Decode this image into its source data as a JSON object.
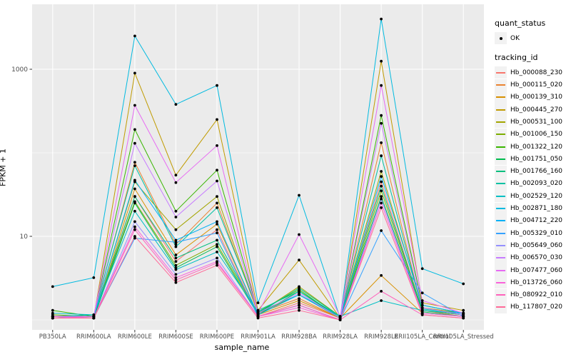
{
  "chart_data": {
    "type": "line",
    "title": "",
    "xlabel": "sample_name",
    "ylabel": "FPKM + 1",
    "y_scale": "log10",
    "y_major_ticks": [
      10,
      1000
    ],
    "y_minor_gridlines": [
      1,
      100
    ],
    "grid": "on",
    "legend_position": "right",
    "categories": [
      "PB350LA",
      "RRIM600LA",
      "RRIM600LE",
      "RRIM600SE",
      "RRIM600PE",
      "RRIM901LA",
      "RRIM928BA",
      "RRIM928LA",
      "RRIM928LE",
      "RRII105LA_Control",
      "RRII105LA_Stressed"
    ],
    "legends": {
      "quant_status_title": "quant_status",
      "ok_label": "OK",
      "tracking_title": "tracking_id"
    },
    "panel_color": "#EBEBEB",
    "gridline_color": "#FFFFFF",
    "tick_label_color": "#4D4D4D",
    "point_color": "#000000",
    "series": [
      {
        "name": "Hb_000088_230",
        "color": "#F8766D",
        "values": [
          1.05,
          1.05,
          30,
          5,
          12,
          1.1,
          1.6,
          1.05,
          45,
          1.3,
          1.1
        ]
      },
      {
        "name": "Hb_000115_020",
        "color": "#EA8331",
        "values": [
          1.05,
          1.1,
          77,
          8,
          25,
          1.2,
          1.8,
          1.05,
          132,
          1.3,
          1.15
        ]
      },
      {
        "name": "Hb_000139_310",
        "color": "#D89000",
        "values": [
          1.05,
          1.05,
          37,
          6,
          14,
          1.15,
          1.7,
          1.05,
          3.4,
          1.2,
          1.1
        ]
      },
      {
        "name": "Hb_000445_270",
        "color": "#C09B00",
        "values": [
          1.1,
          1.05,
          900,
          54,
          250,
          1.3,
          5.2,
          1.05,
          1250,
          1.6,
          1.3
        ]
      },
      {
        "name": "Hb_000531_100",
        "color": "#A3A500",
        "values": [
          1.1,
          1.1,
          45,
          12,
          30,
          1.2,
          2.5,
          1.1,
          60,
          1.4,
          1.2
        ]
      },
      {
        "name": "Hb_001006_150",
        "color": "#7CAE00",
        "values": [
          1.15,
          1.1,
          26,
          4.5,
          8,
          1.2,
          2.0,
          1.05,
          35,
          1.3,
          1.15
        ]
      },
      {
        "name": "Hb_001322_120",
        "color": "#39B600",
        "values": [
          1.3,
          1.1,
          190,
          20,
          62,
          1.25,
          2.3,
          1.05,
          280,
          1.5,
          1.2
        ]
      },
      {
        "name": "Hb_001751_050",
        "color": "#00BB4E",
        "values": [
          1.1,
          1.05,
          25,
          4.2,
          7.5,
          1.15,
          2.2,
          1.05,
          30,
          1.25,
          1.1
        ]
      },
      {
        "name": "Hb_001766_160",
        "color": "#00BF7D",
        "values": [
          1.1,
          1.1,
          30,
          5.5,
          9,
          1.2,
          2.4,
          1.1,
          40,
          1.3,
          1.15
        ]
      },
      {
        "name": "Hb_002093_020",
        "color": "#00C1A3",
        "values": [
          1.1,
          1.15,
          70,
          7.5,
          22,
          1.3,
          2.2,
          1.1,
          92,
          1.35,
          1.2
        ]
      },
      {
        "name": "Hb_002529_120",
        "color": "#00BFC4",
        "values": [
          1.2,
          1.15,
          20,
          4,
          6.5,
          1.25,
          2.0,
          1.1,
          1.7,
          1.3,
          1.2
        ]
      },
      {
        "name": "Hb_002871_180",
        "color": "#00BAE0",
        "values": [
          2.5,
          3.2,
          2500,
          380,
          640,
          1.6,
          31,
          1.05,
          4000,
          4.1,
          2.7
        ]
      },
      {
        "name": "Hb_004712_220",
        "color": "#00B0F6",
        "values": [
          1.1,
          1.1,
          47,
          9,
          15,
          1.15,
          2.0,
          1.05,
          52,
          1.5,
          1.2
        ]
      },
      {
        "name": "Hb_005329_010",
        "color": "#35A2FF",
        "values": [
          1.05,
          1.05,
          9.5,
          8.5,
          11,
          1.1,
          1.5,
          1.0,
          11.7,
          2.1,
          1.1
        ]
      },
      {
        "name": "Hb_005649_060",
        "color": "#9590FF",
        "values": [
          1.05,
          1.05,
          15,
          3.5,
          5.5,
          1.1,
          1.5,
          1.0,
          28,
          1.2,
          1.1
        ]
      },
      {
        "name": "Hb_006570_030",
        "color": "#C77CFF",
        "values": [
          1.05,
          1.1,
          130,
          17,
          46,
          1.2,
          2.1,
          1.05,
          225,
          1.4,
          1.15
        ]
      },
      {
        "name": "Hb_007477_060",
        "color": "#E76BF3",
        "values": [
          1.1,
          1.1,
          370,
          44,
          122,
          1.2,
          10.5,
          1.1,
          640,
          1.7,
          1.2
        ]
      },
      {
        "name": "Hb_013726_060",
        "color": "#FA62DB",
        "values": [
          1.05,
          1.05,
          13,
          3.2,
          5,
          1.1,
          1.4,
          1.0,
          25,
          1.2,
          1.1
        ]
      },
      {
        "name": "Hb_080922_010",
        "color": "#FF62BC",
        "values": [
          1.1,
          1.05,
          12,
          3,
          4.8,
          1.1,
          1.5,
          1.0,
          2.2,
          1.15,
          1.05
        ]
      },
      {
        "name": "Hb_117807_020",
        "color": "#FF6A98",
        "values": [
          1.05,
          1.05,
          10,
          2.8,
          4.5,
          1.05,
          1.3,
          1.0,
          22,
          1.15,
          1.05
        ]
      }
    ]
  }
}
